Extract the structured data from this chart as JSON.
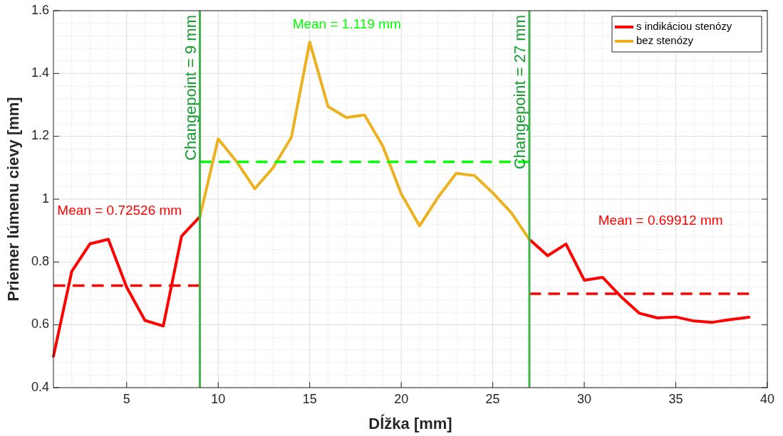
{
  "chart_data": {
    "type": "line",
    "xlabel": "Dĺžka [mm]",
    "ylabel": "Priemer lúmenu cievy [mm]",
    "xlim": [
      1,
      40
    ],
    "xticks": [
      5,
      10,
      15,
      20,
      25,
      30,
      35,
      40
    ],
    "ylim": [
      0.4,
      1.6
    ],
    "yticks": [
      0.4,
      0.6,
      0.8,
      1,
      1.2,
      1.4,
      1.6
    ],
    "grid": true,
    "legend": "top right",
    "line_style": "solid",
    "marker": "none",
    "series": [
      {
        "name": "s indikáciou stenózy",
        "color": "#ff0000",
        "x": [
          1,
          2,
          3,
          4,
          5,
          6,
          7,
          8,
          9,
          10,
          11,
          12,
          13,
          14,
          15,
          16,
          17,
          18,
          19,
          20,
          21,
          22,
          23,
          24,
          25,
          26,
          27,
          28,
          29,
          30,
          31,
          32,
          33,
          34,
          35,
          36,
          37,
          38,
          39
        ],
        "values": [
          0.5,
          0.77,
          0.858,
          0.872,
          0.72,
          0.614,
          0.596,
          0.882,
          0.944,
          null,
          null,
          null,
          null,
          null,
          null,
          null,
          null,
          null,
          null,
          null,
          null,
          null,
          null,
          null,
          null,
          null,
          0.872,
          0.82,
          0.857,
          0.742,
          0.751,
          0.69,
          0.637,
          0.622,
          0.625,
          0.612,
          0.608,
          0.617,
          0.624
        ]
      },
      {
        "name": "bez stenózy",
        "color": "#edb120",
        "x": [
          9,
          10,
          11,
          12,
          13,
          14,
          15,
          16,
          17,
          18,
          19,
          20,
          21,
          22,
          23,
          24,
          25,
          26,
          27
        ],
        "values": [
          0.944,
          1.192,
          1.12,
          1.033,
          1.1,
          1.197,
          1.5,
          1.295,
          1.26,
          1.268,
          1.168,
          1.017,
          0.915,
          1.005,
          1.082,
          1.075,
          1.02,
          0.958,
          0.872
        ]
      },
      {
        "color": "#ff0000",
        "line_style": "dashed",
        "x": [
          1,
          9
        ],
        "values": [
          0.725,
          0.725
        ]
      },
      {
        "color": "#00ff00",
        "line_style": "dashed",
        "x": [
          9,
          27
        ],
        "values": [
          1.119,
          1.119
        ]
      },
      {
        "color": "#ff0000",
        "line_style": "dashed",
        "x": [
          27,
          39
        ],
        "values": [
          0.699,
          0.699
        ]
      }
    ],
    "ref_lines": [
      {
        "axis": "x",
        "value": 9,
        "label": "Changepoint = 9 mm",
        "color": "#3cb44b"
      },
      {
        "axis": "x",
        "value": 27,
        "label": "Changepoint = 27 mm",
        "color": "#3cb44b"
      }
    ],
    "annotations": [
      "Mean = 0.72526 mm",
      "Mean = 1.119 mm",
      "Mean = 0.69912 mm"
    ]
  }
}
